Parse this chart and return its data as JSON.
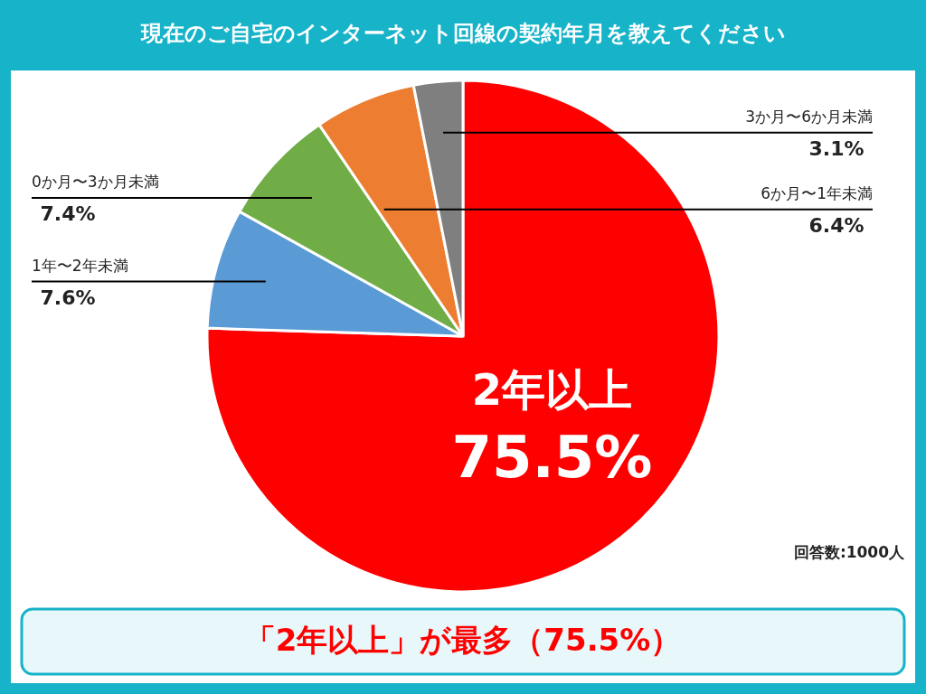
{
  "chart_data": {
    "type": "pie",
    "title": "現在のご自宅のインターネット回線の契約年月を教えてください",
    "categories": [
      "2年以上",
      "1年〜2年未満",
      "0か月〜3か月未満",
      "6か月〜1年未満",
      "3か月〜6か月未満"
    ],
    "values": [
      75.5,
      7.6,
      7.4,
      6.4,
      3.1
    ],
    "colors": [
      "#ff0000",
      "#5b9bd5",
      "#70ad47",
      "#ed7d31",
      "#7f7f7f"
    ],
    "value_labels": [
      "75.5%",
      "7.6%",
      "7.4%",
      "6.4%",
      "3.1%"
    ],
    "annotations": [
      "回答数:1000人",
      "「2年以上」が最多（75.5%）"
    ]
  }
}
